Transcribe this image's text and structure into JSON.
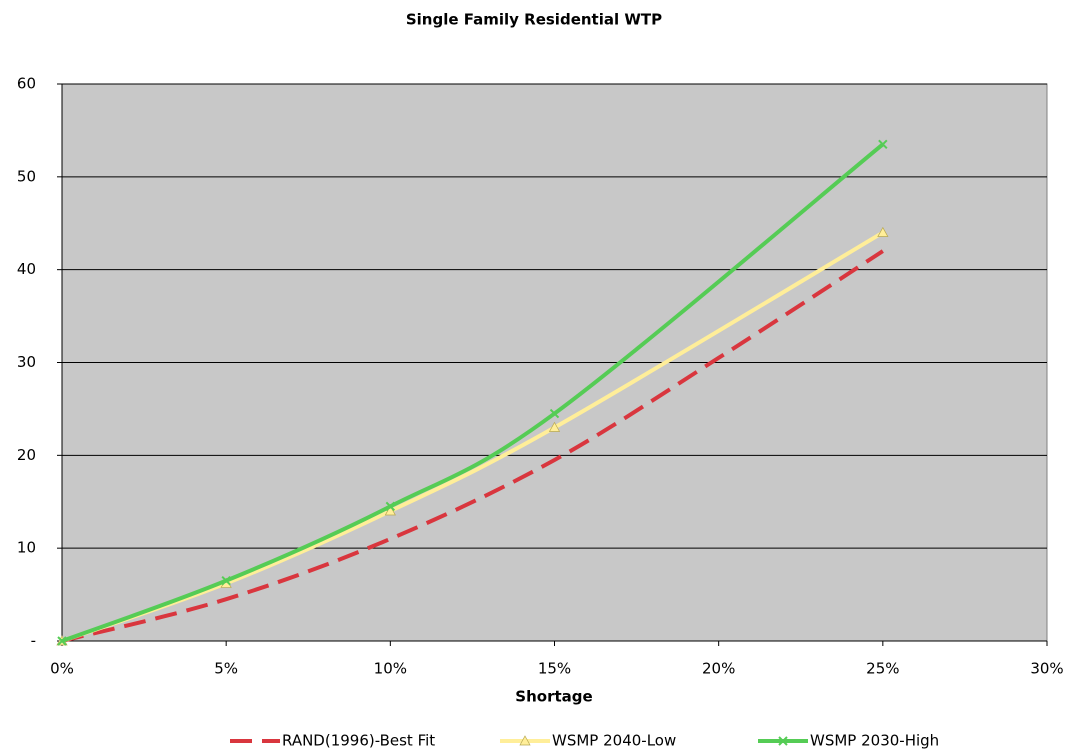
{
  "chart_data": {
    "type": "line",
    "title": "Single Family Residential WTP",
    "x_label": "Shortage",
    "xlim": [
      0,
      30
    ],
    "xticks": [
      {
        "value": 0,
        "label": "0%"
      },
      {
        "value": 5,
        "label": "5%"
      },
      {
        "value": 10,
        "label": "10%"
      },
      {
        "value": 15,
        "label": "15%"
      },
      {
        "value": 20,
        "label": "20%"
      },
      {
        "value": 25,
        "label": "25%"
      },
      {
        "value": 30,
        "label": "30%"
      }
    ],
    "ylim": [
      0,
      60
    ],
    "yticks": [
      {
        "value": 0,
        "label": "-"
      },
      10,
      20,
      30,
      40,
      50,
      60
    ],
    "grid": true,
    "smooth": true,
    "legend": "bottom",
    "series": [
      {
        "name": "RAND(1996)-Best Fit",
        "color": "#d9363e",
        "dash": true,
        "marker": null,
        "x": [
          0,
          5,
          10,
          15,
          20,
          25
        ],
        "values": [
          0,
          4.5,
          11,
          19.5,
          30.5,
          42
        ]
      },
      {
        "name": "WSMP 2040-Low",
        "color": "#ffee99",
        "dash": false,
        "marker": "triangle",
        "x": [
          0,
          5,
          10,
          15,
          25
        ],
        "values": [
          0,
          6.2,
          14,
          23,
          44
        ]
      },
      {
        "name": "WSMP 2030-High",
        "color": "#55cc55",
        "dash": false,
        "marker": "x",
        "x": [
          0,
          5,
          10,
          15,
          25
        ],
        "values": [
          0,
          6.5,
          14.5,
          24.5,
          53.5
        ]
      }
    ]
  }
}
